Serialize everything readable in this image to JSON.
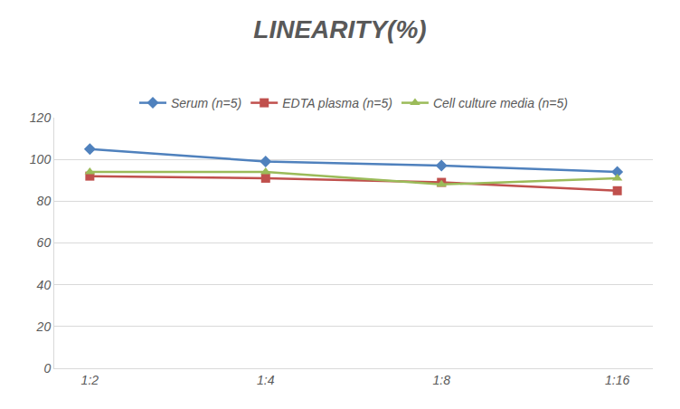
{
  "chart_data": {
    "type": "line",
    "title": "LINEARITY(%)",
    "categories": [
      "1:2",
      "1:4",
      "1:8",
      "1:16"
    ],
    "series": [
      {
        "name": "Serum (n=5)",
        "color": "#4f81bd",
        "marker": "diamond",
        "line_style": "solid",
        "values": [
          105,
          99,
          97,
          94
        ]
      },
      {
        "name": "EDTA plasma (n=5)",
        "color": "#c0504d",
        "marker": "square",
        "line_style": "solid",
        "values": [
          92,
          91,
          89,
          85
        ]
      },
      {
        "name": "Cell culture media (n=5)",
        "color": "#9bbb59",
        "marker": "triangle-up",
        "line_style": "solid",
        "values": [
          94,
          94,
          88,
          91
        ]
      }
    ],
    "ylim": [
      0,
      120
    ],
    "yticks": [
      0,
      20,
      40,
      60,
      80,
      100,
      120
    ],
    "grid": true,
    "legend": "top"
  }
}
